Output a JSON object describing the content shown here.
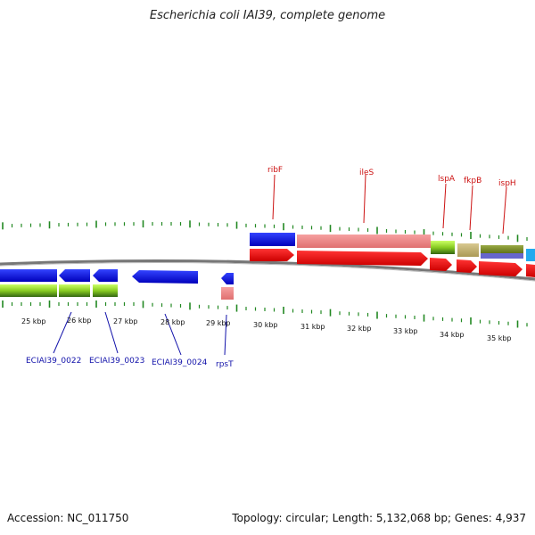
{
  "title": "Escherichia coli IAI39, complete genome",
  "footer": {
    "accession": "Accession: NC_011750",
    "summary": "Topology: circular; Length: 5,132,068 bp; Genes: 4,937"
  },
  "scale": {
    "unit": "kbp",
    "ticks": [
      "25 kbp",
      "26 kbp",
      "27 kbp",
      "28 kbp",
      "29 kbp",
      "30 kbp",
      "31 kbp",
      "32 kbp",
      "33 kbp",
      "34 kbp",
      "35 kbp"
    ]
  },
  "gene_labels_top": [
    "ribF",
    "ileS",
    "lspA",
    "fkpB",
    "ispH"
  ],
  "gene_labels_bottom": [
    "ECIAI39_0022",
    "ECIAI39_0023",
    "ECIAI39_0024",
    "rpsT"
  ],
  "colors": {
    "forward_strand": "#dd0000",
    "reverse_strand": "#0000cc",
    "label_top": "#cc1111",
    "label_bottom": "#1111aa",
    "backbone": "#777777",
    "ticks": "#228822"
  }
}
